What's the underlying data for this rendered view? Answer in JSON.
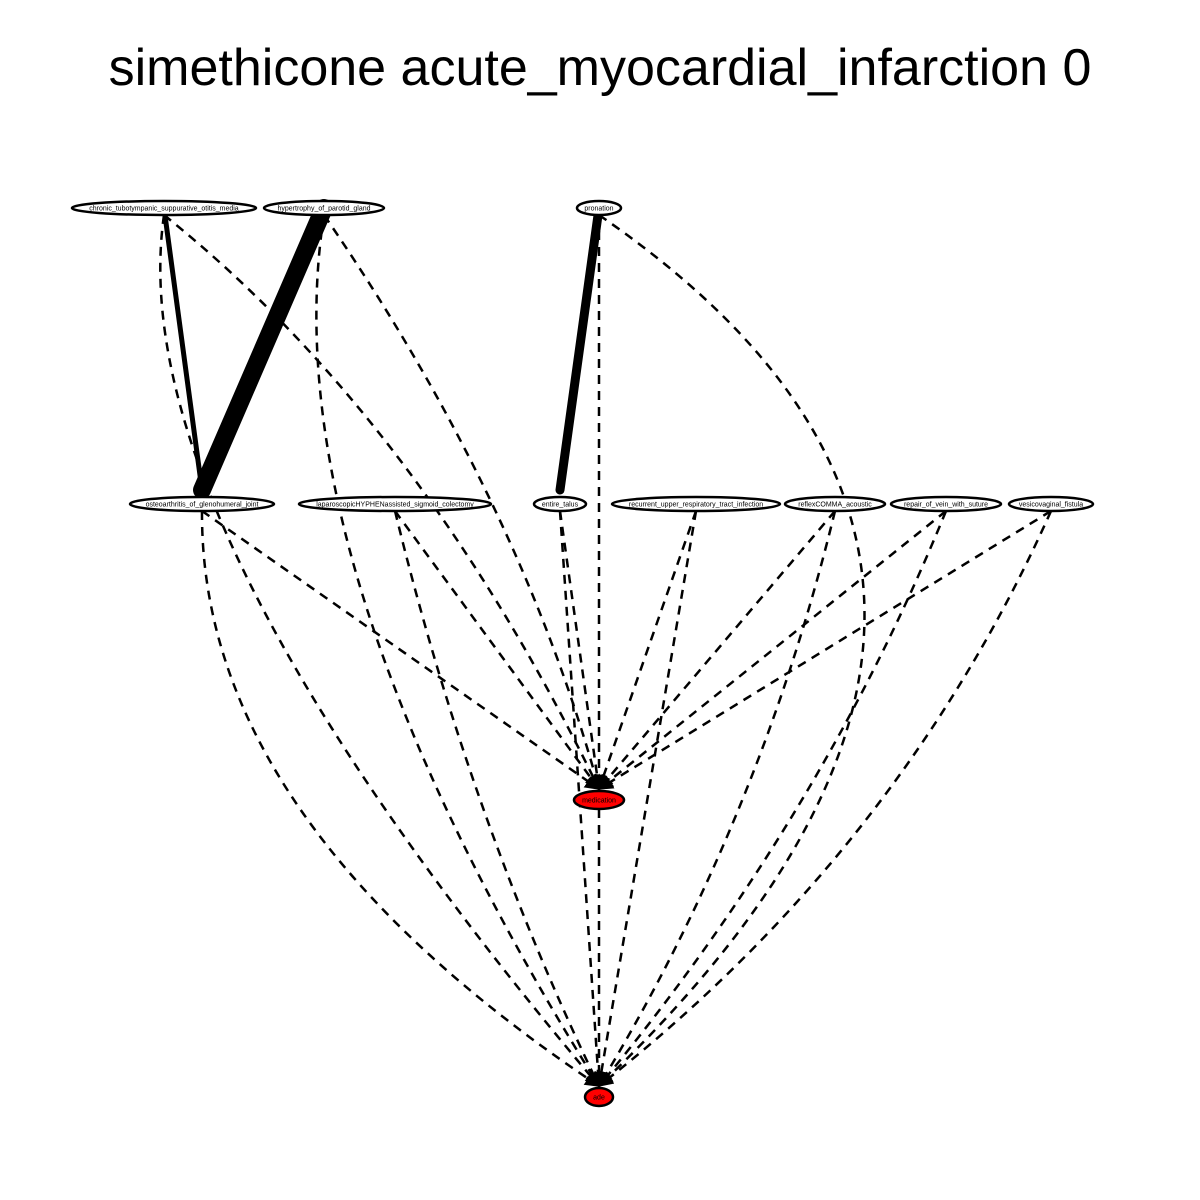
{
  "title": "simethicone acute_myocardial_infarction 0",
  "colors": {
    "background": "#ffffff",
    "edge": "#000000",
    "node_fill": "#ffffff",
    "target_fill": "#ff0000"
  },
  "nodes": [
    {
      "id": "n1",
      "label": "chronic_tubotympanic_suppurative_otitis_media",
      "fill": "white"
    },
    {
      "id": "n2",
      "label": "hypertrophy_of_parotid_gland",
      "fill": "white"
    },
    {
      "id": "n3",
      "label": "pronation",
      "fill": "white"
    },
    {
      "id": "n4",
      "label": "osteoarthritis_of_glenohumeral_joint",
      "fill": "white"
    },
    {
      "id": "n5",
      "label": "laparoscopicHYPHENassisted_sigmoid_colectomy",
      "fill": "white"
    },
    {
      "id": "n6",
      "label": "entire_talus",
      "fill": "white"
    },
    {
      "id": "n7",
      "label": "recurrent_upper_respiratory_tract_infection",
      "fill": "white"
    },
    {
      "id": "n8",
      "label": "reflexCOMMA_acoustic",
      "fill": "white"
    },
    {
      "id": "n9",
      "label": "repair_of_vein_with_suture",
      "fill": "white"
    },
    {
      "id": "n10",
      "label": "vesicovaginal_fistula",
      "fill": "white"
    },
    {
      "id": "med",
      "label": "medication",
      "fill": "red"
    },
    {
      "id": "ade",
      "label": "ade",
      "fill": "red"
    }
  ],
  "edges": [
    {
      "from": "n1",
      "to": "n4",
      "style": "solid",
      "weight": 1
    },
    {
      "from": "n2",
      "to": "n4",
      "style": "solid",
      "weight": 4
    },
    {
      "from": "n3",
      "to": "n6",
      "style": "solid",
      "weight": 2
    },
    {
      "from": "n1",
      "to": "med",
      "style": "dashed"
    },
    {
      "from": "n1",
      "to": "ade",
      "style": "dashed"
    },
    {
      "from": "n2",
      "to": "med",
      "style": "dashed"
    },
    {
      "from": "n2",
      "to": "ade",
      "style": "dashed"
    },
    {
      "from": "n3",
      "to": "med",
      "style": "dashed"
    },
    {
      "from": "n3",
      "to": "ade",
      "style": "dashed"
    },
    {
      "from": "n4",
      "to": "med",
      "style": "dashed"
    },
    {
      "from": "n4",
      "to": "ade",
      "style": "dashed"
    },
    {
      "from": "n5",
      "to": "med",
      "style": "dashed"
    },
    {
      "from": "n5",
      "to": "ade",
      "style": "dashed"
    },
    {
      "from": "n6",
      "to": "med",
      "style": "dashed"
    },
    {
      "from": "n6",
      "to": "ade",
      "style": "dashed"
    },
    {
      "from": "n7",
      "to": "med",
      "style": "dashed"
    },
    {
      "from": "n7",
      "to": "ade",
      "style": "dashed"
    },
    {
      "from": "n8",
      "to": "med",
      "style": "dashed"
    },
    {
      "from": "n8",
      "to": "ade",
      "style": "dashed"
    },
    {
      "from": "n9",
      "to": "med",
      "style": "dashed"
    },
    {
      "from": "n9",
      "to": "ade",
      "style": "dashed"
    },
    {
      "from": "n10",
      "to": "med",
      "style": "dashed"
    },
    {
      "from": "n10",
      "to": "ade",
      "style": "dashed"
    },
    {
      "from": "med",
      "to": "ade",
      "style": "dashed"
    }
  ]
}
